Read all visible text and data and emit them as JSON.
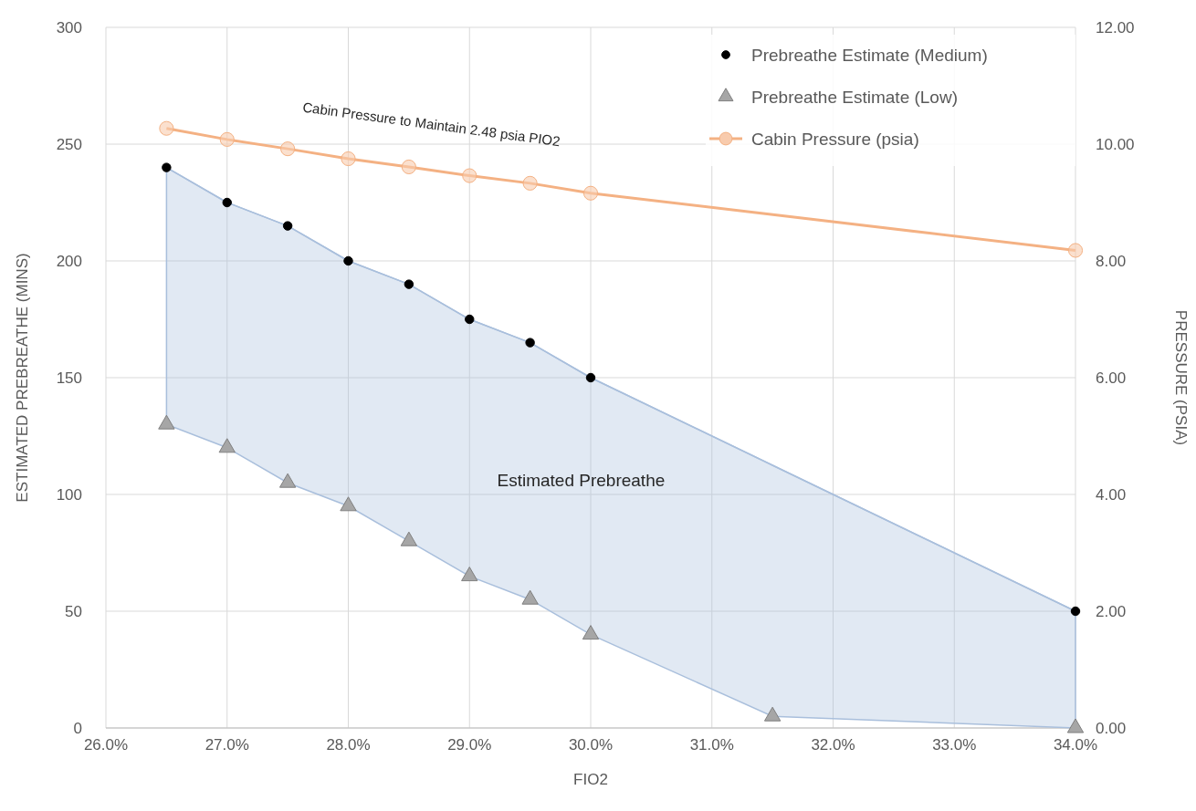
{
  "chart_data": {
    "type": "scatter",
    "xlabel": "FIO2",
    "ylabel": "ESTIMATED PREBREATHE (MINS)",
    "y2label": "PRESSURE (PSIA)",
    "xlim": [
      26,
      34
    ],
    "xticks": [
      {
        "value": 26,
        "label": "26.0%"
      },
      {
        "value": 27,
        "label": "27.0%"
      },
      {
        "value": 28,
        "label": "28.0%"
      },
      {
        "value": 29,
        "label": "29.0%"
      },
      {
        "value": 30,
        "label": "30.0%"
      },
      {
        "value": 31,
        "label": "31.0%"
      },
      {
        "value": 32,
        "label": "32.0%"
      },
      {
        "value": 33,
        "label": "33.0%"
      },
      {
        "value": 34,
        "label": "34.0%"
      }
    ],
    "ylim": [
      0,
      300
    ],
    "yticks": [
      0,
      50,
      100,
      150,
      200,
      250,
      300
    ],
    "y2lim": [
      0,
      12
    ],
    "y2ticks": [
      {
        "value": 0,
        "label": "0.00"
      },
      {
        "value": 2,
        "label": "2.00"
      },
      {
        "value": 4,
        "label": "4.00"
      },
      {
        "value": 6,
        "label": "6.00"
      },
      {
        "value": 8,
        "label": "8.00"
      },
      {
        "value": 10,
        "label": "10.00"
      },
      {
        "value": 12,
        "label": "12.00"
      }
    ],
    "grid": true,
    "legend": "top right",
    "series": [
      {
        "type": "line",
        "color": "#a9bfdc",
        "x": [
          26.5,
          27,
          27.5,
          28,
          28.5,
          29,
          29.5,
          30,
          31.5,
          34
        ],
        "values": [
          240,
          225,
          215,
          200,
          190,
          175,
          165,
          150,
          112.5,
          50
        ],
        "lower": [
          130,
          120,
          105,
          95,
          80,
          65,
          55,
          40,
          5,
          0
        ],
        "upper": [
          240,
          225,
          215,
          200,
          190,
          175,
          165,
          150,
          112.5,
          50
        ]
      },
      {
        "name": "Prebreathe Estimate (Medium)",
        "color": "#000000",
        "marker": "circle",
        "x": [
          26.5,
          27,
          27.5,
          28,
          28.5,
          29,
          29.5,
          30,
          34
        ],
        "values": [
          240,
          225,
          215,
          200,
          190,
          175,
          165,
          150,
          50
        ]
      },
      {
        "name": "Prebreathe Estimate (Low)",
        "color": "#a6a6a6",
        "marker": "triangle",
        "x": [
          26.5,
          27,
          27.5,
          28,
          28.5,
          29,
          29.5,
          30,
          31.5,
          34
        ],
        "values": [
          130,
          120,
          105,
          95,
          80,
          65,
          55,
          40,
          5,
          0
        ]
      },
      {
        "type": "line",
        "name": "Cabin Pressure (psia)",
        "color": "#f4b183",
        "marker": "circle",
        "axis": "y2",
        "x": [
          26.5,
          27,
          27.5,
          28,
          28.5,
          29,
          29.5,
          30,
          34
        ],
        "values": [
          10.27,
          10.08,
          9.92,
          9.75,
          9.61,
          9.46,
          9.33,
          9.16,
          8.18
        ]
      }
    ],
    "annotations": [
      "Cabin Pressure to Maintain 2.48 psia PIO2",
      "Estimated Prebreathe"
    ]
  }
}
